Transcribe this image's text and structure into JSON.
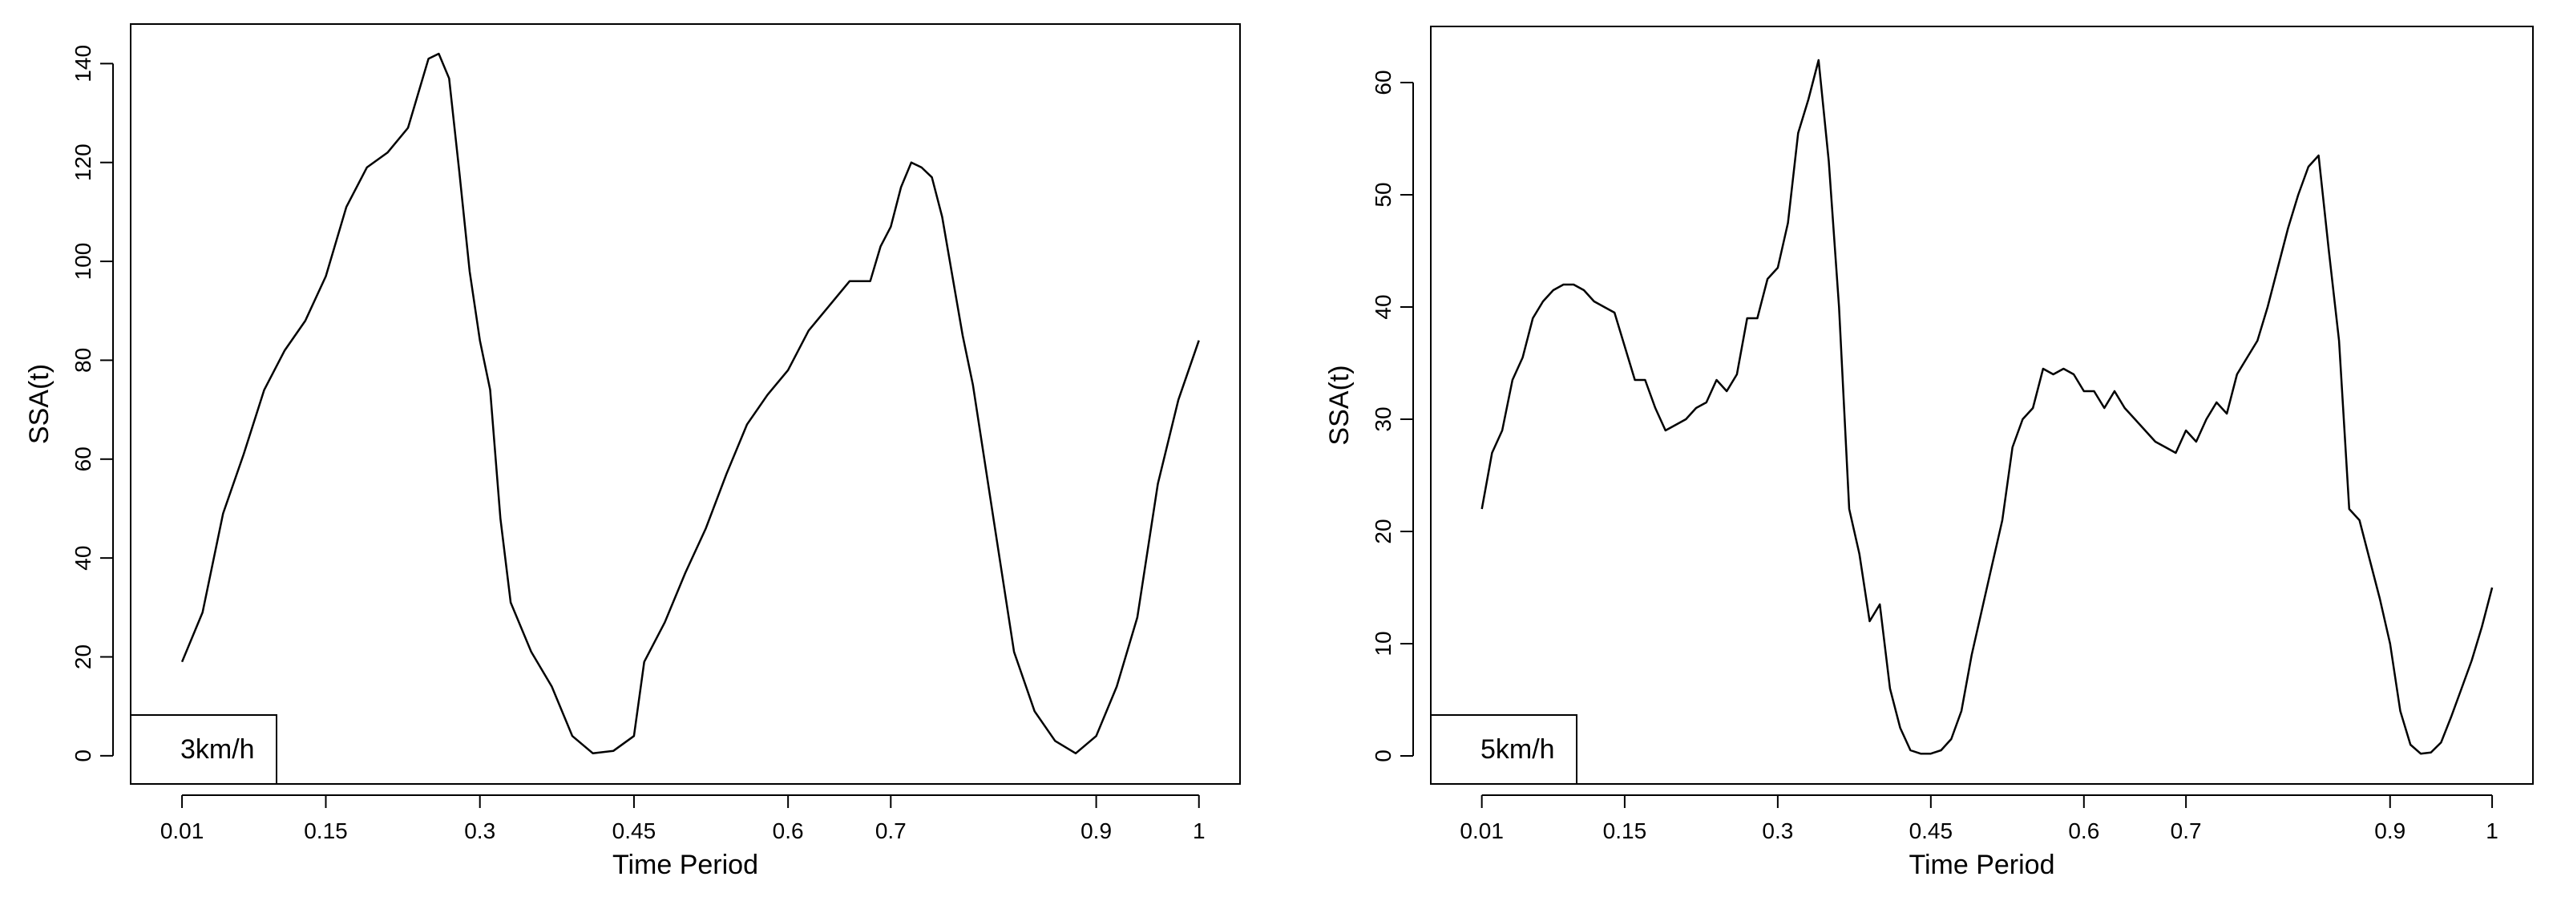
{
  "chart_data": [
    {
      "type": "line",
      "title": "",
      "xlabel": "Time Period",
      "ylabel": "SSA(t)",
      "legend": "3km/h",
      "legend_position": "bottom-left",
      "grid": false,
      "xlim": [
        -0.04,
        1.04
      ],
      "ylim": [
        -5.7,
        148
      ],
      "x_ticks": [
        0.01,
        0.15,
        0.3,
        0.45,
        0.6,
        0.7,
        0.9,
        1
      ],
      "x_tick_labels": [
        "0.01",
        "0.15",
        "0.3",
        "0.45",
        "0.6",
        "0.7",
        "0.9",
        "1"
      ],
      "y_ticks": [
        0,
        20,
        40,
        60,
        80,
        100,
        120,
        140
      ],
      "y_tick_labels": [
        "0",
        "20",
        "40",
        "60",
        "80",
        "100",
        "120",
        "140"
      ],
      "series": [
        {
          "x": [
            0.01,
            0.03,
            0.05,
            0.07,
            0.09,
            0.11,
            0.13,
            0.15,
            0.17,
            0.19,
            0.21,
            0.23,
            0.24,
            0.25,
            0.26,
            0.27,
            0.28,
            0.29,
            0.3,
            0.31,
            0.32,
            0.33,
            0.35,
            0.37,
            0.39,
            0.41,
            0.43,
            0.45,
            0.46,
            0.48,
            0.5,
            0.52,
            0.54,
            0.56,
            0.58,
            0.6,
            0.62,
            0.64,
            0.66,
            0.68,
            0.69,
            0.7,
            0.71,
            0.72,
            0.73,
            0.74,
            0.75,
            0.76,
            0.77,
            0.78,
            0.8,
            0.82,
            0.84,
            0.86,
            0.88,
            0.9,
            0.92,
            0.94,
            0.96,
            0.98,
            1.0
          ],
          "y": [
            19,
            29,
            49,
            61,
            74,
            82,
            88,
            97,
            111,
            119,
            122,
            127,
            134,
            141,
            142,
            137,
            118,
            98,
            84,
            74,
            48,
            31,
            21,
            14,
            4,
            0.5,
            1,
            4,
            19,
            27,
            37,
            46,
            57,
            67,
            73,
            78,
            86,
            91,
            96,
            96,
            103,
            107,
            115,
            120,
            119,
            117,
            109,
            97,
            85,
            75,
            48,
            21,
            9,
            3,
            0.5,
            4,
            14,
            28,
            55,
            72,
            84
          ],
          "color": "#000000"
        }
      ]
    },
    {
      "type": "line",
      "title": "",
      "xlabel": "Time Period",
      "ylabel": "SSA(t)",
      "legend": "5km/h",
      "legend_position": "bottom-left",
      "grid": false,
      "xlim": [
        -0.04,
        1.04
      ],
      "ylim": [
        -2.5,
        65
      ],
      "x_ticks": [
        0.01,
        0.15,
        0.3,
        0.45,
        0.6,
        0.7,
        0.9,
        1
      ],
      "x_tick_labels": [
        "0.01",
        "0.15",
        "0.3",
        "0.45",
        "0.6",
        "0.7",
        "0.9",
        "1"
      ],
      "y_ticks": [
        0,
        10,
        20,
        30,
        40,
        50,
        60
      ],
      "y_tick_labels": [
        "0",
        "10",
        "20",
        "30",
        "40",
        "50",
        "60"
      ],
      "series": [
        {
          "x": [
            0.01,
            0.02,
            0.03,
            0.04,
            0.05,
            0.06,
            0.07,
            0.08,
            0.09,
            0.1,
            0.11,
            0.12,
            0.13,
            0.14,
            0.15,
            0.16,
            0.17,
            0.18,
            0.19,
            0.2,
            0.21,
            0.22,
            0.23,
            0.24,
            0.25,
            0.26,
            0.27,
            0.28,
            0.29,
            0.3,
            0.31,
            0.32,
            0.33,
            0.34,
            0.35,
            0.36,
            0.37,
            0.38,
            0.39,
            0.4,
            0.41,
            0.42,
            0.43,
            0.44,
            0.45,
            0.46,
            0.47,
            0.48,
            0.49,
            0.5,
            0.51,
            0.52,
            0.53,
            0.54,
            0.55,
            0.56,
            0.57,
            0.58,
            0.59,
            0.6,
            0.61,
            0.62,
            0.63,
            0.64,
            0.65,
            0.66,
            0.67,
            0.68,
            0.69,
            0.7,
            0.71,
            0.72,
            0.73,
            0.74,
            0.75,
            0.76,
            0.77,
            0.78,
            0.79,
            0.8,
            0.81,
            0.82,
            0.83,
            0.84,
            0.85,
            0.86,
            0.87,
            0.88,
            0.89,
            0.9,
            0.91,
            0.92,
            0.93,
            0.94,
            0.95,
            0.96,
            0.97,
            0.98,
            0.99,
            1.0
          ],
          "y": [
            22,
            27,
            29,
            33.5,
            35.5,
            39,
            40.5,
            41.5,
            42,
            42,
            41.5,
            40.5,
            40,
            39.5,
            36.5,
            33.5,
            33.5,
            31,
            29,
            29.5,
            30,
            31,
            31.5,
            33.5,
            32.5,
            34,
            39,
            39,
            42.5,
            43.5,
            47.5,
            55.5,
            58.5,
            62,
            53,
            40,
            22,
            18,
            12,
            13.5,
            6,
            2.5,
            0.5,
            0.2,
            0.2,
            0.5,
            1.5,
            4,
            9,
            13,
            17,
            21,
            27.5,
            30,
            31,
            34.5,
            34,
            34.5,
            34,
            32.5,
            32.5,
            31,
            32.5,
            31,
            30,
            29,
            28,
            27.5,
            27,
            29,
            28,
            30,
            31.5,
            30.5,
            34,
            35.5,
            37,
            40,
            43.5,
            47,
            50,
            52.5,
            53.5,
            45,
            37,
            22,
            21,
            17.5,
            14,
            10,
            4,
            1,
            0.2,
            0.3,
            1.2,
            3.5,
            6,
            8.5,
            11.5,
            15
          ],
          "color": "#000000"
        }
      ]
    }
  ]
}
